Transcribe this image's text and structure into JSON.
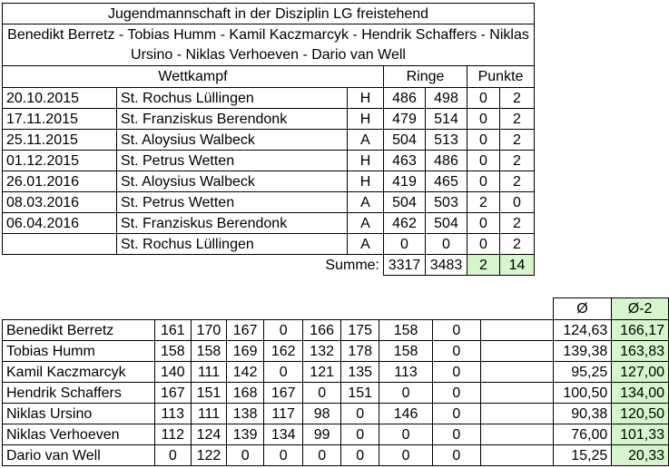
{
  "title": "Jugendmannschaft in der Disziplin LG freistehend",
  "members": "Benedikt Berretz - Tobias Humm - Kamil Kaczmarcyk - Hendrik Schaffers - Niklas Ursino - Niklas Verhoeven - Dario van Well",
  "headers": {
    "wettkampf": "Wettkampf",
    "ringe": "Ringe",
    "punkte": "Punkte"
  },
  "matches": [
    {
      "date": "20.10.2015",
      "opponent": "St. Rochus Lüllingen",
      "venue": "H",
      "ringe_a": "486",
      "ringe_b": "498",
      "pkt_a": "0",
      "pkt_b": "2"
    },
    {
      "date": "17.11.2015",
      "opponent": "St. Franziskus Berendonk",
      "venue": "H",
      "ringe_a": "479",
      "ringe_b": "514",
      "pkt_a": "0",
      "pkt_b": "2"
    },
    {
      "date": "25.11.2015",
      "opponent": "St. Aloysius Walbeck",
      "venue": "A",
      "ringe_a": "504",
      "ringe_b": "513",
      "pkt_a": "0",
      "pkt_b": "2"
    },
    {
      "date": "01.12.2015",
      "opponent": "St. Petrus Wetten",
      "venue": "H",
      "ringe_a": "463",
      "ringe_b": "486",
      "pkt_a": "0",
      "pkt_b": "2"
    },
    {
      "date": "26.01.2016",
      "opponent": "St. Aloysius Walbeck",
      "venue": "H",
      "ringe_a": "419",
      "ringe_b": "465",
      "pkt_a": "0",
      "pkt_b": "2"
    },
    {
      "date": "08.03.2016",
      "opponent": "St. Petrus Wetten",
      "venue": "A",
      "ringe_a": "504",
      "ringe_b": "503",
      "pkt_a": "2",
      "pkt_b": "0"
    },
    {
      "date": "06.04.2016",
      "opponent": "St. Franziskus Berendonk",
      "venue": "A",
      "ringe_a": "462",
      "ringe_b": "504",
      "pkt_a": "0",
      "pkt_b": "2"
    },
    {
      "date": "",
      "opponent": "St. Rochus Lüllingen",
      "venue": "A",
      "ringe_a": "0",
      "ringe_b": "0",
      "pkt_a": "0",
      "pkt_b": "2"
    }
  ],
  "summe": {
    "label": "Summe:",
    "ringe_a": "3317",
    "ringe_b": "3483",
    "pkt_a": "2",
    "pkt_b": "14"
  },
  "stats_headers": {
    "avg": "Ø",
    "avg2": "Ø-2"
  },
  "shooters": [
    {
      "name": "Benedikt Berretz",
      "scores": [
        "161",
        "170",
        "167",
        "0",
        "166",
        "175",
        "158",
        "0"
      ],
      "avg": "124,63",
      "avg2": "166,17"
    },
    {
      "name": "Tobias Humm",
      "scores": [
        "158",
        "158",
        "169",
        "162",
        "132",
        "178",
        "158",
        "0"
      ],
      "avg": "139,38",
      "avg2": "163,83"
    },
    {
      "name": "Kamil Kaczmarcyk",
      "scores": [
        "140",
        "111",
        "142",
        "0",
        "121",
        "135",
        "113",
        "0"
      ],
      "avg": "95,25",
      "avg2": "127,00"
    },
    {
      "name": "Hendrik Schaffers",
      "scores": [
        "167",
        "151",
        "168",
        "167",
        "0",
        "151",
        "0",
        "0"
      ],
      "avg": "100,50",
      "avg2": "134,00"
    },
    {
      "name": "Niklas Ursino",
      "scores": [
        "113",
        "111",
        "138",
        "117",
        "98",
        "0",
        "146",
        "0"
      ],
      "avg": "90,38",
      "avg2": "120,50"
    },
    {
      "name": "Niklas Verhoeven",
      "scores": [
        "112",
        "124",
        "139",
        "134",
        "99",
        "0",
        "0",
        "0"
      ],
      "avg": "76,00",
      "avg2": "101,33"
    },
    {
      "name": "Dario van Well",
      "scores": [
        "0",
        "122",
        "0",
        "0",
        "0",
        "0",
        "0",
        "0"
      ],
      "avg": "15,25",
      "avg2": "20,33"
    }
  ],
  "colors": {
    "highlight": "#d6f5cc",
    "border": "#000000"
  }
}
